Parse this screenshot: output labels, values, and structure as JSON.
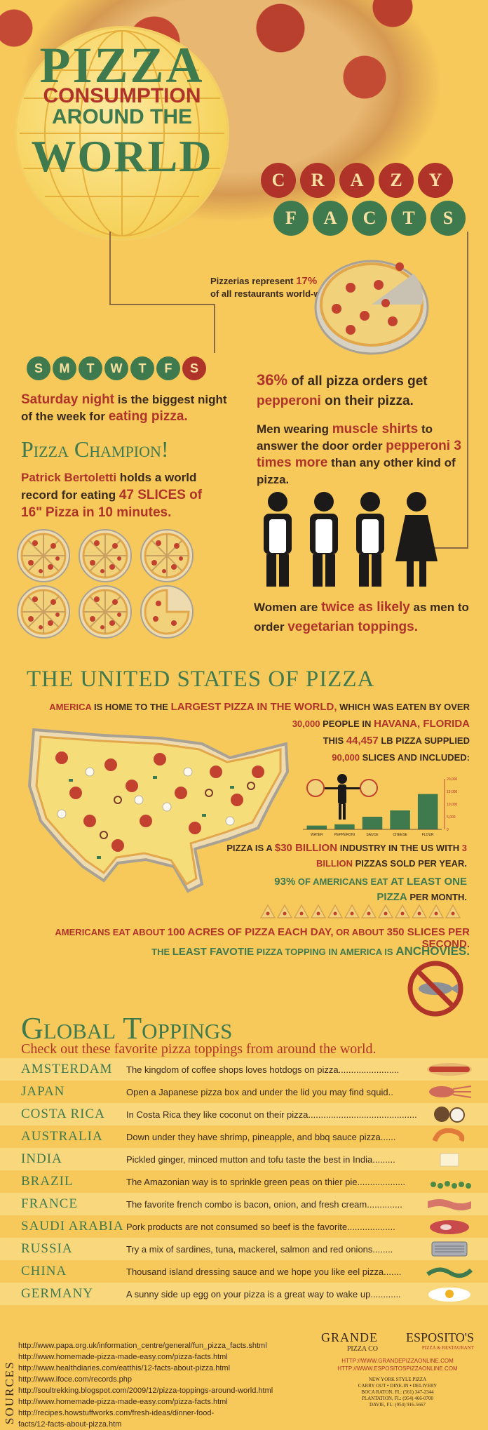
{
  "title": {
    "line1": "PIZZA",
    "line2a": "CONSUMPTION",
    "line2b": "AROUND THE",
    "line3": "WORLD"
  },
  "crazy": [
    "C",
    "R",
    "A",
    "Z",
    "Y"
  ],
  "facts": [
    "F",
    "A",
    "C",
    "T",
    "S"
  ],
  "pizzerias": {
    "pre": "Pizzerias represent",
    "pct": "17%",
    "post": "of all restaurants world-wide"
  },
  "days": [
    "S",
    "M",
    "T",
    "W",
    "T",
    "F",
    "S"
  ],
  "saturday": {
    "a": "Saturday night",
    "b": "is the biggest night of the week for",
    "c": "eating pizza."
  },
  "champion": {
    "title": "Pizza Champion!",
    "a": "Patrick Bertoletti",
    "b": "holds a world record for eating",
    "c": "47 SLICES of 16\"",
    "d": "Pizza in 10 minutes."
  },
  "pepperoni": {
    "pct": "36%",
    "a": "of all pizza orders get",
    "b": "pepperoni",
    "c": "on their pizza."
  },
  "shirts": {
    "a": "Men wearing",
    "b": "muscle shirts",
    "c": "to answer the door order",
    "d": "pepperoni 3 times more",
    "e": "than any other kind of pizza."
  },
  "women": {
    "a": "Women are",
    "b": "twice as likely",
    "c": "as men to order",
    "d": "vegetarian toppings."
  },
  "usa": {
    "title": "THE UNITED STATES OF PIZZA",
    "l1a": "AMERICA",
    "l1b": "IS HOME TO THE",
    "l1c": "LARGEST PIZZA IN THE WORLD,",
    "l1d": "WHICH WAS EATEN BY OVER",
    "l2a": "30,000",
    "l2b": "PEOPLE IN",
    "l2c": "HAVANA, FLORIDA",
    "l3a": "THIS",
    "l3b": "44,457",
    "l3c": "LB PIZZA SUPPLIED",
    "l4a": "90,000",
    "l4b": "SLICES AND INCLUDED:",
    "ind1": "PIZZA IS A",
    "ind2": "$30 BILLION",
    "ind3": "INDUSTRY IN THE US WITH",
    "ind4": "3 BILLION",
    "ind5": "PIZZAS SOLD PER YEAR.",
    "m1": "93%",
    "m2": "OF AMERICANS EAT",
    "m3": "AT LEAST ONE",
    "m4": "PIZZA",
    "m5": "PER MONTH.",
    "acres1": "AMERICANS EAT ABOUT",
    "acres2": "100 ACRES OF PIZZA",
    "acres3": "EACH DAY,",
    "acres4": "OR ABOUT",
    "acres5": "350 SLICES PER SECOND.",
    "least1": "THE",
    "least2": "LEAST FAVOTIE",
    "least3": "PIZZA TOPPING IN AMERICA IS",
    "least4": "ANCHOVIES."
  },
  "chart_data": {
    "type": "bar",
    "categories": [
      "WATER",
      "PEPPERONI",
      "SAUCE",
      "CHEESE",
      "FLOUR"
    ],
    "values": [
      1500,
      2000,
      5000,
      7500,
      14000
    ],
    "ylim": [
      0,
      20000
    ],
    "yticks": [
      "20,000",
      "15,000",
      "10,000",
      "5,000",
      "0"
    ]
  },
  "toppings": {
    "title": "Global Toppings",
    "subtitle": "Check out these favorite pizza toppings from around the world.",
    "rows": [
      {
        "city": "AMSTERDAM",
        "text": "The kingdom of coffee shops loves hotdogs on pizza........................",
        "icon": "hotdog-icon"
      },
      {
        "city": "JAPAN",
        "text": "Open a Japanese pizza box and under the lid you may find squid..",
        "icon": "squid-icon"
      },
      {
        "city": "COSTA RICA",
        "text": "In Costa Rica they like coconut on their pizza...........................................",
        "icon": "coconut-icon"
      },
      {
        "city": "AUSTRALIA",
        "text": "Down under they have shrimp, pineapple, and bbq sauce pizza......",
        "icon": "shrimp-icon"
      },
      {
        "city": "INDIA",
        "text": "Pickled ginger, minced mutton and tofu taste the best in India.........",
        "icon": "tofu-icon"
      },
      {
        "city": "BRAZIL",
        "text": "The Amazonian way is to sprinkle green peas on thier pie...................",
        "icon": "peas-icon"
      },
      {
        "city": "FRANCE",
        "text": "The favorite french combo is bacon, onion, and fresh cream..............",
        "icon": "bacon-icon"
      },
      {
        "city": "SAUDI ARABIA",
        "text": "Pork products are not consumed so beef is the favorite...................",
        "icon": "beef-icon"
      },
      {
        "city": "RUSSIA",
        "text": "Try a mix of sardines, tuna, mackerel, salmon and red onions........",
        "icon": "sardines-icon"
      },
      {
        "city": "CHINA",
        "text": "Thousand island dressing sauce and we hope you like eel pizza.......",
        "icon": "eel-icon"
      },
      {
        "city": "GERMANY",
        "text": "A sunny side up egg on your pizza is a great way to wake up............",
        "icon": "egg-icon"
      }
    ]
  },
  "sources": {
    "label": "SOURCES",
    "items": [
      "http://www.papa.org.uk/information_centre/general/fun_pizza_facts.shtml",
      "http://www.homemade-pizza-made-easy.com/pizza-facts.html",
      "http://www.healthdiaries.com/eatthis/12-facts-about-pizza.html",
      "http://www.ifoce.com/records.php",
      "http://soultrekking.blogspot.com/2009/12/pizza-toppings-around-world.html",
      "http://www.homemade-pizza-made-easy.com/pizza-facts.html",
      "http://recipes.howstuffworks.com/fresh-ideas/dinner-food-",
      "facts/12-facts-about-pizza.htm"
    ]
  },
  "brand": {
    "grande1": "GRANDE",
    "grande2": "PIZZA CO",
    "esp1": "ESPOSITO'S",
    "esp2": "PIZZA & RESTAURANT",
    "url1": "HTTP://WWW.GRANDEPIZZAONLINE.COM",
    "url2": "HTTP://WWW.ESPOSITOSPIZZAONLINE.COM",
    "addr": [
      "NEW YORK STYLE PIZZA",
      "CARRY OUT • DINE-IN • DELIVERY",
      "BOCA RATON, FL: (561) 347-2344",
      "PLANTATION, FL: (954) 466-0700",
      "DAVIE, FL: (954) 916-5667"
    ]
  },
  "colors": {
    "background": "#f7c95a",
    "red": "#b0332a",
    "green": "#3f7a4f",
    "dark": "#3a2a1e"
  }
}
